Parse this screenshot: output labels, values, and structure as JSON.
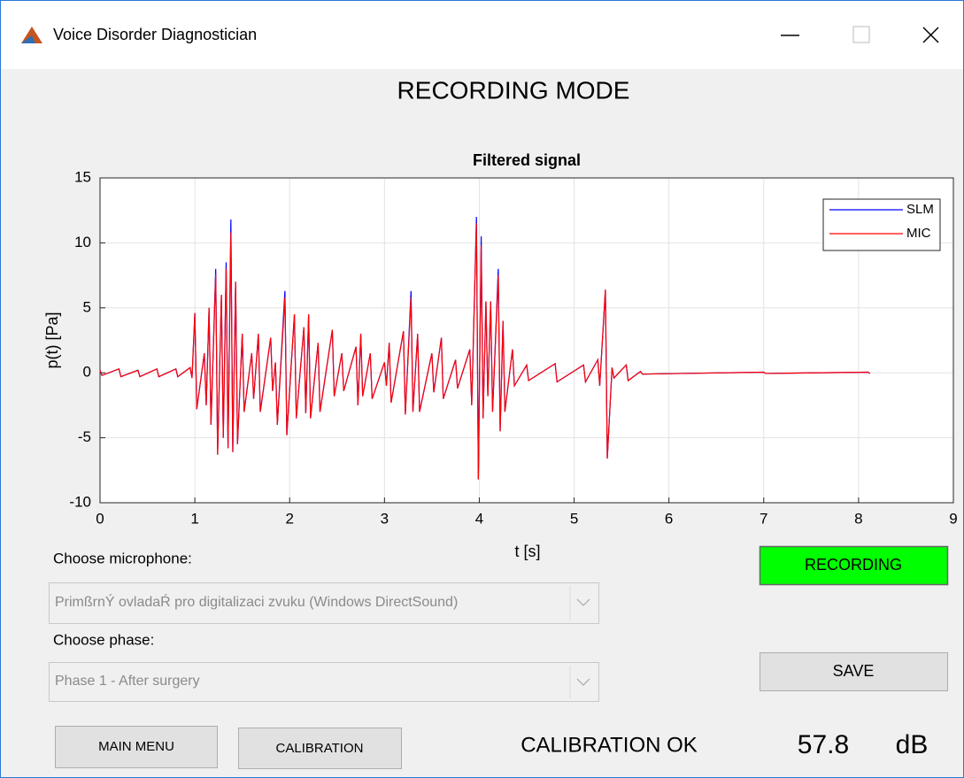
{
  "window": {
    "title": "Voice Disorder Diagnostician"
  },
  "header": {
    "title": "RECORDING MODE"
  },
  "chart_data": {
    "type": "line",
    "title": "Filtered signal",
    "x_label": "t [s]",
    "y_label": "p(t) [Pa]",
    "xlim": [
      0,
      9
    ],
    "ylim": [
      -10,
      15
    ],
    "xticks": [
      0,
      1,
      2,
      3,
      4,
      5,
      6,
      7,
      8,
      9
    ],
    "yticks": [
      -10,
      -5,
      0,
      5,
      10,
      15
    ],
    "grid": true,
    "legend": "upper right",
    "x": [
      0,
      0.02,
      0.2,
      0.22,
      0.4,
      0.42,
      0.6,
      0.62,
      0.8,
      0.82,
      0.95,
      0.97,
      1,
      1.02,
      1.1,
      1.12,
      1.15,
      1.17,
      1.22,
      1.24,
      1.28,
      1.3,
      1.33,
      1.35,
      1.38,
      1.4,
      1.43,
      1.45,
      1.5,
      1.52,
      1.6,
      1.62,
      1.67,
      1.69,
      1.8,
      1.82,
      1.85,
      1.87,
      1.95,
      1.97,
      2.05,
      2.07,
      2.15,
      2.17,
      2.2,
      2.22,
      2.3,
      2.32,
      2.45,
      2.47,
      2.55,
      2.57,
      2.7,
      2.72,
      2.75,
      2.77,
      2.85,
      2.87,
      3,
      3.02,
      3.05,
      3.07,
      3.2,
      3.22,
      3.28,
      3.3,
      3.35,
      3.37,
      3.5,
      3.52,
      3.6,
      3.62,
      3.75,
      3.77,
      3.9,
      3.92,
      3.97,
      3.99,
      4.02,
      4.04,
      4.07,
      4.09,
      4.12,
      4.14,
      4.2,
      4.22,
      4.25,
      4.27,
      4.35,
      4.37,
      4.5,
      4.52,
      4.8,
      4.82,
      5.1,
      5.12,
      5.25,
      5.27,
      5.33,
      5.35,
      5.4,
      5.42,
      5.55,
      5.57,
      5.7,
      5.72,
      7,
      7.02,
      8.1,
      8.12
    ],
    "series": [
      {
        "name": "SLM",
        "color": "#0000ff",
        "values": [
          0.2,
          -0.2,
          0.3,
          -0.3,
          0.2,
          -0.3,
          0.3,
          -0.3,
          0.3,
          -0.3,
          0.4,
          -0.4,
          4.6,
          -2.8,
          1.5,
          -2.5,
          5,
          -4,
          8,
          -6.3,
          6,
          -5,
          8.5,
          -5.8,
          11.8,
          -6.1,
          7,
          -5.5,
          3,
          -3,
          1.5,
          -2,
          3,
          -3,
          2.7,
          -1.4,
          0.8,
          -4,
          6.3,
          -4.8,
          4.5,
          -3.5,
          3.5,
          -3.1,
          4.5,
          -3.5,
          2.3,
          -3,
          3.3,
          -1.8,
          1.5,
          -1.4,
          2,
          -2.5,
          3,
          -1.8,
          1.5,
          -2,
          0.8,
          -1,
          2.3,
          -2.3,
          3.2,
          -3.2,
          6.3,
          -3,
          3,
          -3,
          1.5,
          -1.5,
          2.7,
          -2,
          1,
          -1.2,
          1.8,
          -2.5,
          12,
          -8.2,
          10.5,
          -3.5,
          5.5,
          -1.8,
          5.5,
          -3,
          8,
          -4.5,
          4,
          -3,
          1.8,
          -1,
          0.6,
          -0.6,
          0.7,
          -0.7,
          0.6,
          -0.7,
          1,
          -1,
          6.4,
          -6.6,
          0.4,
          -0.4,
          0.6,
          -0.6,
          0.1,
          -0.1,
          0.05,
          -0.05,
          0.05,
          -0.05
        ]
      },
      {
        "name": "MIC",
        "color": "#ff0000",
        "values": [
          0.2,
          -0.2,
          0.3,
          -0.3,
          0.2,
          -0.3,
          0.3,
          -0.3,
          0.3,
          -0.3,
          0.4,
          -0.4,
          4.6,
          -2.8,
          1.5,
          -2.5,
          5,
          -4,
          7.6,
          -6.3,
          6,
          -5,
          8,
          -5.8,
          10.8,
          -6.1,
          7,
          -5.5,
          3,
          -3,
          1.5,
          -2,
          3,
          -3,
          2.7,
          -1.4,
          0.8,
          -4,
          5.8,
          -4.8,
          4.5,
          -3.5,
          3.5,
          -3.1,
          4.5,
          -3.5,
          2.3,
          -3,
          3.3,
          -1.8,
          1.5,
          -1.4,
          2,
          -2.5,
          3,
          -1.8,
          1.5,
          -2,
          0.8,
          -1,
          2.3,
          -2.3,
          3.2,
          -3.2,
          5.8,
          -3,
          3,
          -3,
          1.5,
          -1.5,
          2.7,
          -2,
          1,
          -1.2,
          1.8,
          -2.5,
          11.5,
          -8.2,
          9.8,
          -3.5,
          5.5,
          -1.8,
          5.5,
          -3,
          7.5,
          -4.5,
          4,
          -3,
          1.8,
          -1,
          0.6,
          -0.6,
          0.7,
          -0.7,
          0.6,
          -0.7,
          1,
          -1,
          6.4,
          -6.6,
          0.4,
          -0.4,
          0.6,
          -0.6,
          0.1,
          -0.1,
          0.05,
          -0.05,
          0.05,
          -0.05
        ]
      }
    ]
  },
  "controls": {
    "microphone_label": "Choose microphone:",
    "microphone_value": "PrimßrnÝ ovladaŔ pro digitalizaci zvuku (Windows DirectSound)",
    "phase_label": "Choose phase:",
    "phase_value": "Phase 1 - After surgery",
    "recording_status": "RECORDING",
    "save_button": "SAVE",
    "main_menu_button": "MAIN MENU",
    "calibration_button": "CALIBRATION",
    "calibration_status": "CALIBRATION OK",
    "level_value": 57.8,
    "level_unit": "dB"
  }
}
